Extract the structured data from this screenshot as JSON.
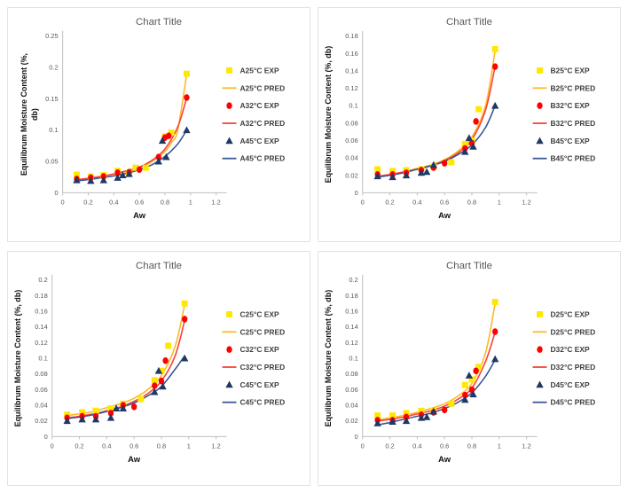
{
  "page": {
    "background": "#ffffff",
    "layout": "2x2-grid-of-charts"
  },
  "palette": {
    "exp25": "#FFE800",
    "pred25": "#FDB827",
    "exp32": "#FF0000",
    "pred32": "#F8423B",
    "exp45": "#1F3864",
    "pred45": "#3A5795",
    "axis": "#BFBFBF",
    "title_text": "#595959",
    "tick_text": "#595959"
  },
  "chart_data": [
    {
      "id": "A",
      "type": "scatter",
      "title": "Chart Title",
      "xlabel": "Aw",
      "ylabel": "Equilibrum Moisture Content (%, db)",
      "ylabel_lines": [
        "Equilibrum Moisture Content (%,",
        "db)"
      ],
      "xlim": [
        0,
        1.2
      ],
      "ylim": [
        0,
        0.25
      ],
      "xticks": [
        "0",
        "0.2",
        "0.4",
        "0.6",
        "0.8",
        "1",
        "1.2"
      ],
      "yticks": [
        "0",
        "0.05",
        "0.1",
        "0.15",
        "0.2",
        "0.25"
      ],
      "grid": false,
      "legend_position": "right",
      "series": [
        {
          "name": "A25°C EXP",
          "kind": "scatter",
          "marker": "square",
          "color": "#FFE800",
          "x": [
            0.11,
            0.22,
            0.32,
            0.43,
            0.52,
            0.57,
            0.65,
            0.8,
            0.85,
            0.97
          ],
          "y": [
            0.029,
            0.026,
            0.028,
            0.035,
            0.032,
            0.04,
            0.04,
            0.09,
            0.096,
            0.19
          ]
        },
        {
          "name": "A25°C PRED",
          "kind": "line",
          "color": "#FDB827",
          "x": [
            0.11,
            0.2,
            0.3,
            0.4,
            0.5,
            0.6,
            0.7,
            0.8,
            0.85,
            0.9,
            0.97
          ],
          "y": [
            0.021,
            0.023,
            0.026,
            0.03,
            0.034,
            0.04,
            0.05,
            0.066,
            0.08,
            0.1,
            0.19
          ]
        },
        {
          "name": "A32°C EXP",
          "kind": "scatter",
          "marker": "circle",
          "color": "#FF0000",
          "x": [
            0.11,
            0.22,
            0.32,
            0.43,
            0.52,
            0.6,
            0.75,
            0.8,
            0.83,
            0.97
          ],
          "y": [
            0.022,
            0.024,
            0.026,
            0.032,
            0.033,
            0.037,
            0.057,
            0.088,
            0.091,
            0.152
          ]
        },
        {
          "name": "A32°C PRED",
          "kind": "line",
          "color": "#F8423B",
          "x": [
            0.11,
            0.2,
            0.3,
            0.4,
            0.5,
            0.6,
            0.7,
            0.8,
            0.9,
            0.97
          ],
          "y": [
            0.021,
            0.023,
            0.026,
            0.03,
            0.035,
            0.041,
            0.052,
            0.07,
            0.105,
            0.152
          ]
        },
        {
          "name": "A45°C EXP",
          "kind": "scatter",
          "marker": "triangle",
          "color": "#1F3864",
          "x": [
            0.11,
            0.22,
            0.32,
            0.43,
            0.47,
            0.52,
            0.75,
            0.78,
            0.81,
            0.97
          ],
          "y": [
            0.02,
            0.019,
            0.02,
            0.024,
            0.028,
            0.03,
            0.05,
            0.083,
            0.057,
            0.1
          ]
        },
        {
          "name": "A45°C PRED",
          "kind": "line",
          "color": "#3A5795",
          "x": [
            0.11,
            0.2,
            0.3,
            0.4,
            0.5,
            0.6,
            0.7,
            0.8,
            0.9,
            0.97
          ],
          "y": [
            0.019,
            0.021,
            0.024,
            0.027,
            0.031,
            0.037,
            0.045,
            0.058,
            0.078,
            0.1
          ]
        }
      ]
    },
    {
      "id": "B",
      "type": "scatter",
      "title": "Chart Title",
      "xlabel": "Aw",
      "ylabel": "Equilibrum Moisture Content (%, db)",
      "ylabel_lines": [
        "Equilibrum Moisture Content (%, db)"
      ],
      "xlim": [
        0,
        1.2
      ],
      "ylim": [
        0,
        0.18
      ],
      "xticks": [
        "0",
        "0.2",
        "0.4",
        "0.6",
        "0.8",
        "1",
        "1.2"
      ],
      "yticks": [
        "0",
        "0.02",
        "0.04",
        "0.06",
        "0.08",
        "0.1",
        "0.12",
        "0.14",
        "0.16",
        "0.18"
      ],
      "grid": false,
      "legend_position": "right",
      "series": [
        {
          "name": "B25°C EXP",
          "kind": "scatter",
          "marker": "square",
          "color": "#FFE800",
          "x": [
            0.11,
            0.22,
            0.32,
            0.43,
            0.52,
            0.65,
            0.75,
            0.8,
            0.85,
            0.97
          ],
          "y": [
            0.027,
            0.025,
            0.026,
            0.027,
            0.03,
            0.035,
            0.056,
            0.06,
            0.096,
            0.165
          ]
        },
        {
          "name": "B25°C PRED",
          "kind": "line",
          "color": "#FDB827",
          "x": [
            0.11,
            0.2,
            0.3,
            0.4,
            0.5,
            0.6,
            0.7,
            0.8,
            0.9,
            0.97
          ],
          "y": [
            0.019,
            0.021,
            0.024,
            0.028,
            0.032,
            0.038,
            0.048,
            0.064,
            0.1,
            0.163
          ]
        },
        {
          "name": "B32°C EXP",
          "kind": "scatter",
          "marker": "circle",
          "color": "#FF0000",
          "x": [
            0.11,
            0.22,
            0.32,
            0.43,
            0.52,
            0.6,
            0.75,
            0.8,
            0.83,
            0.97
          ],
          "y": [
            0.021,
            0.021,
            0.023,
            0.026,
            0.029,
            0.034,
            0.051,
            0.057,
            0.082,
            0.145
          ]
        },
        {
          "name": "B32°C PRED",
          "kind": "line",
          "color": "#F8423B",
          "x": [
            0.11,
            0.2,
            0.3,
            0.4,
            0.5,
            0.6,
            0.7,
            0.8,
            0.9,
            0.97
          ],
          "y": [
            0.019,
            0.021,
            0.024,
            0.027,
            0.031,
            0.037,
            0.046,
            0.061,
            0.095,
            0.145
          ]
        },
        {
          "name": "B45°C EXP",
          "kind": "scatter",
          "marker": "triangle",
          "color": "#1F3864",
          "x": [
            0.11,
            0.22,
            0.32,
            0.43,
            0.47,
            0.52,
            0.75,
            0.78,
            0.81,
            0.97
          ],
          "y": [
            0.019,
            0.018,
            0.02,
            0.023,
            0.024,
            0.032,
            0.047,
            0.063,
            0.053,
            0.1
          ]
        },
        {
          "name": "B45°C PRED",
          "kind": "line",
          "color": "#3A5795",
          "x": [
            0.11,
            0.2,
            0.3,
            0.4,
            0.5,
            0.6,
            0.7,
            0.8,
            0.9,
            0.97
          ],
          "y": [
            0.018,
            0.02,
            0.023,
            0.027,
            0.031,
            0.036,
            0.044,
            0.055,
            0.075,
            0.1
          ]
        }
      ]
    },
    {
      "id": "C",
      "type": "scatter",
      "title": "Chart Title",
      "xlabel": "Aw",
      "ylabel": "Equilibrum Moisture Content (%, db)",
      "ylabel_lines": [
        "Equilibrum Moisture Content (%, db)"
      ],
      "xlim": [
        0,
        1.2
      ],
      "ylim": [
        0,
        0.2
      ],
      "xticks": [
        "0",
        "0.2",
        "0.4",
        "0.6",
        "0.8",
        "1",
        "1.2"
      ],
      "yticks": [
        "0",
        "0.02",
        "0.04",
        "0.06",
        "0.08",
        "0.1",
        "0.12",
        "0.14",
        "0.16",
        "0.18",
        "0.2"
      ],
      "grid": false,
      "legend_position": "right",
      "series": [
        {
          "name": "C25°C EXP",
          "kind": "scatter",
          "marker": "square",
          "color": "#FFE800",
          "x": [
            0.11,
            0.22,
            0.32,
            0.43,
            0.52,
            0.65,
            0.75,
            0.8,
            0.85,
            0.97
          ],
          "y": [
            0.028,
            0.031,
            0.033,
            0.036,
            0.042,
            0.048,
            0.072,
            0.084,
            0.116,
            0.17
          ]
        },
        {
          "name": "C25°C PRED",
          "kind": "line",
          "color": "#FDB827",
          "x": [
            0.11,
            0.2,
            0.3,
            0.4,
            0.5,
            0.6,
            0.7,
            0.8,
            0.9,
            0.97
          ],
          "y": [
            0.027,
            0.029,
            0.032,
            0.037,
            0.042,
            0.049,
            0.06,
            0.078,
            0.115,
            0.168
          ]
        },
        {
          "name": "C32°C EXP",
          "kind": "scatter",
          "marker": "circle",
          "color": "#FF0000",
          "x": [
            0.11,
            0.22,
            0.32,
            0.43,
            0.52,
            0.6,
            0.75,
            0.8,
            0.83,
            0.97
          ],
          "y": [
            0.024,
            0.026,
            0.026,
            0.03,
            0.04,
            0.038,
            0.065,
            0.071,
            0.097,
            0.15
          ]
        },
        {
          "name": "C32°C PRED",
          "kind": "line",
          "color": "#F8423B",
          "x": [
            0.11,
            0.2,
            0.3,
            0.4,
            0.5,
            0.6,
            0.7,
            0.8,
            0.9,
            0.97
          ],
          "y": [
            0.024,
            0.026,
            0.029,
            0.033,
            0.038,
            0.045,
            0.055,
            0.071,
            0.103,
            0.148
          ]
        },
        {
          "name": "C45°C EXP",
          "kind": "scatter",
          "marker": "triangle",
          "color": "#1F3864",
          "x": [
            0.11,
            0.22,
            0.32,
            0.43,
            0.47,
            0.52,
            0.75,
            0.78,
            0.81,
            0.97
          ],
          "y": [
            0.02,
            0.022,
            0.022,
            0.024,
            0.036,
            0.036,
            0.057,
            0.084,
            0.064,
            0.1
          ]
        },
        {
          "name": "C45°C PRED",
          "kind": "line",
          "color": "#3A5795",
          "x": [
            0.11,
            0.2,
            0.3,
            0.4,
            0.5,
            0.6,
            0.7,
            0.8,
            0.9,
            0.97
          ],
          "y": [
            0.023,
            0.025,
            0.028,
            0.032,
            0.037,
            0.043,
            0.052,
            0.064,
            0.086,
            0.103
          ]
        }
      ]
    },
    {
      "id": "D",
      "type": "scatter",
      "title": "Chart Title",
      "xlabel": "Aw",
      "ylabel": "Equilibrum Moisture Content (%, db)",
      "ylabel_lines": [
        "Equilibrum Moisture Content (%, db)"
      ],
      "xlim": [
        0,
        1.2
      ],
      "ylim": [
        0,
        0.2
      ],
      "xticks": [
        "0",
        "0.2",
        "0.4",
        "0.6",
        "0.8",
        "1",
        "1.2"
      ],
      "yticks": [
        "0",
        "0.02",
        "0.04",
        "0.06",
        "0.08",
        "0.1",
        "0.12",
        "0.14",
        "0.16",
        "0.18",
        "0.2"
      ],
      "grid": false,
      "legend_position": "right",
      "series": [
        {
          "name": "D25°C EXP",
          "kind": "scatter",
          "marker": "square",
          "color": "#FFE800",
          "x": [
            0.11,
            0.22,
            0.32,
            0.43,
            0.52,
            0.65,
            0.75,
            0.8,
            0.85,
            0.97
          ],
          "y": [
            0.027,
            0.027,
            0.03,
            0.033,
            0.033,
            0.042,
            0.066,
            0.073,
            0.089,
            0.172
          ]
        },
        {
          "name": "D25°C PRED",
          "kind": "line",
          "color": "#FDB827",
          "x": [
            0.11,
            0.2,
            0.3,
            0.4,
            0.5,
            0.6,
            0.7,
            0.8,
            0.9,
            0.97
          ],
          "y": [
            0.021,
            0.024,
            0.027,
            0.031,
            0.036,
            0.042,
            0.052,
            0.068,
            0.107,
            0.17
          ]
        },
        {
          "name": "D32°C EXP",
          "kind": "scatter",
          "marker": "circle",
          "color": "#FF0000",
          "x": [
            0.11,
            0.22,
            0.32,
            0.43,
            0.52,
            0.6,
            0.75,
            0.8,
            0.83,
            0.97
          ],
          "y": [
            0.021,
            0.021,
            0.025,
            0.028,
            0.031,
            0.034,
            0.053,
            0.06,
            0.084,
            0.134
          ]
        },
        {
          "name": "D32°C PRED",
          "kind": "line",
          "color": "#F8423B",
          "x": [
            0.11,
            0.2,
            0.3,
            0.4,
            0.5,
            0.6,
            0.7,
            0.8,
            0.9,
            0.97
          ],
          "y": [
            0.02,
            0.022,
            0.025,
            0.029,
            0.033,
            0.039,
            0.048,
            0.062,
            0.096,
            0.133
          ]
        },
        {
          "name": "D45°C EXP",
          "kind": "scatter",
          "marker": "triangle",
          "color": "#1F3864",
          "x": [
            0.11,
            0.22,
            0.32,
            0.43,
            0.47,
            0.52,
            0.75,
            0.78,
            0.81,
            0.97
          ],
          "y": [
            0.017,
            0.019,
            0.02,
            0.024,
            0.025,
            0.032,
            0.047,
            0.078,
            0.054,
            0.099
          ]
        },
        {
          "name": "D45°C PRED",
          "kind": "line",
          "color": "#3A5795",
          "x": [
            0.11,
            0.2,
            0.3,
            0.4,
            0.5,
            0.6,
            0.7,
            0.8,
            0.9,
            0.97
          ],
          "y": [
            0.015,
            0.018,
            0.022,
            0.026,
            0.03,
            0.036,
            0.044,
            0.056,
            0.077,
            0.098
          ]
        }
      ]
    }
  ]
}
